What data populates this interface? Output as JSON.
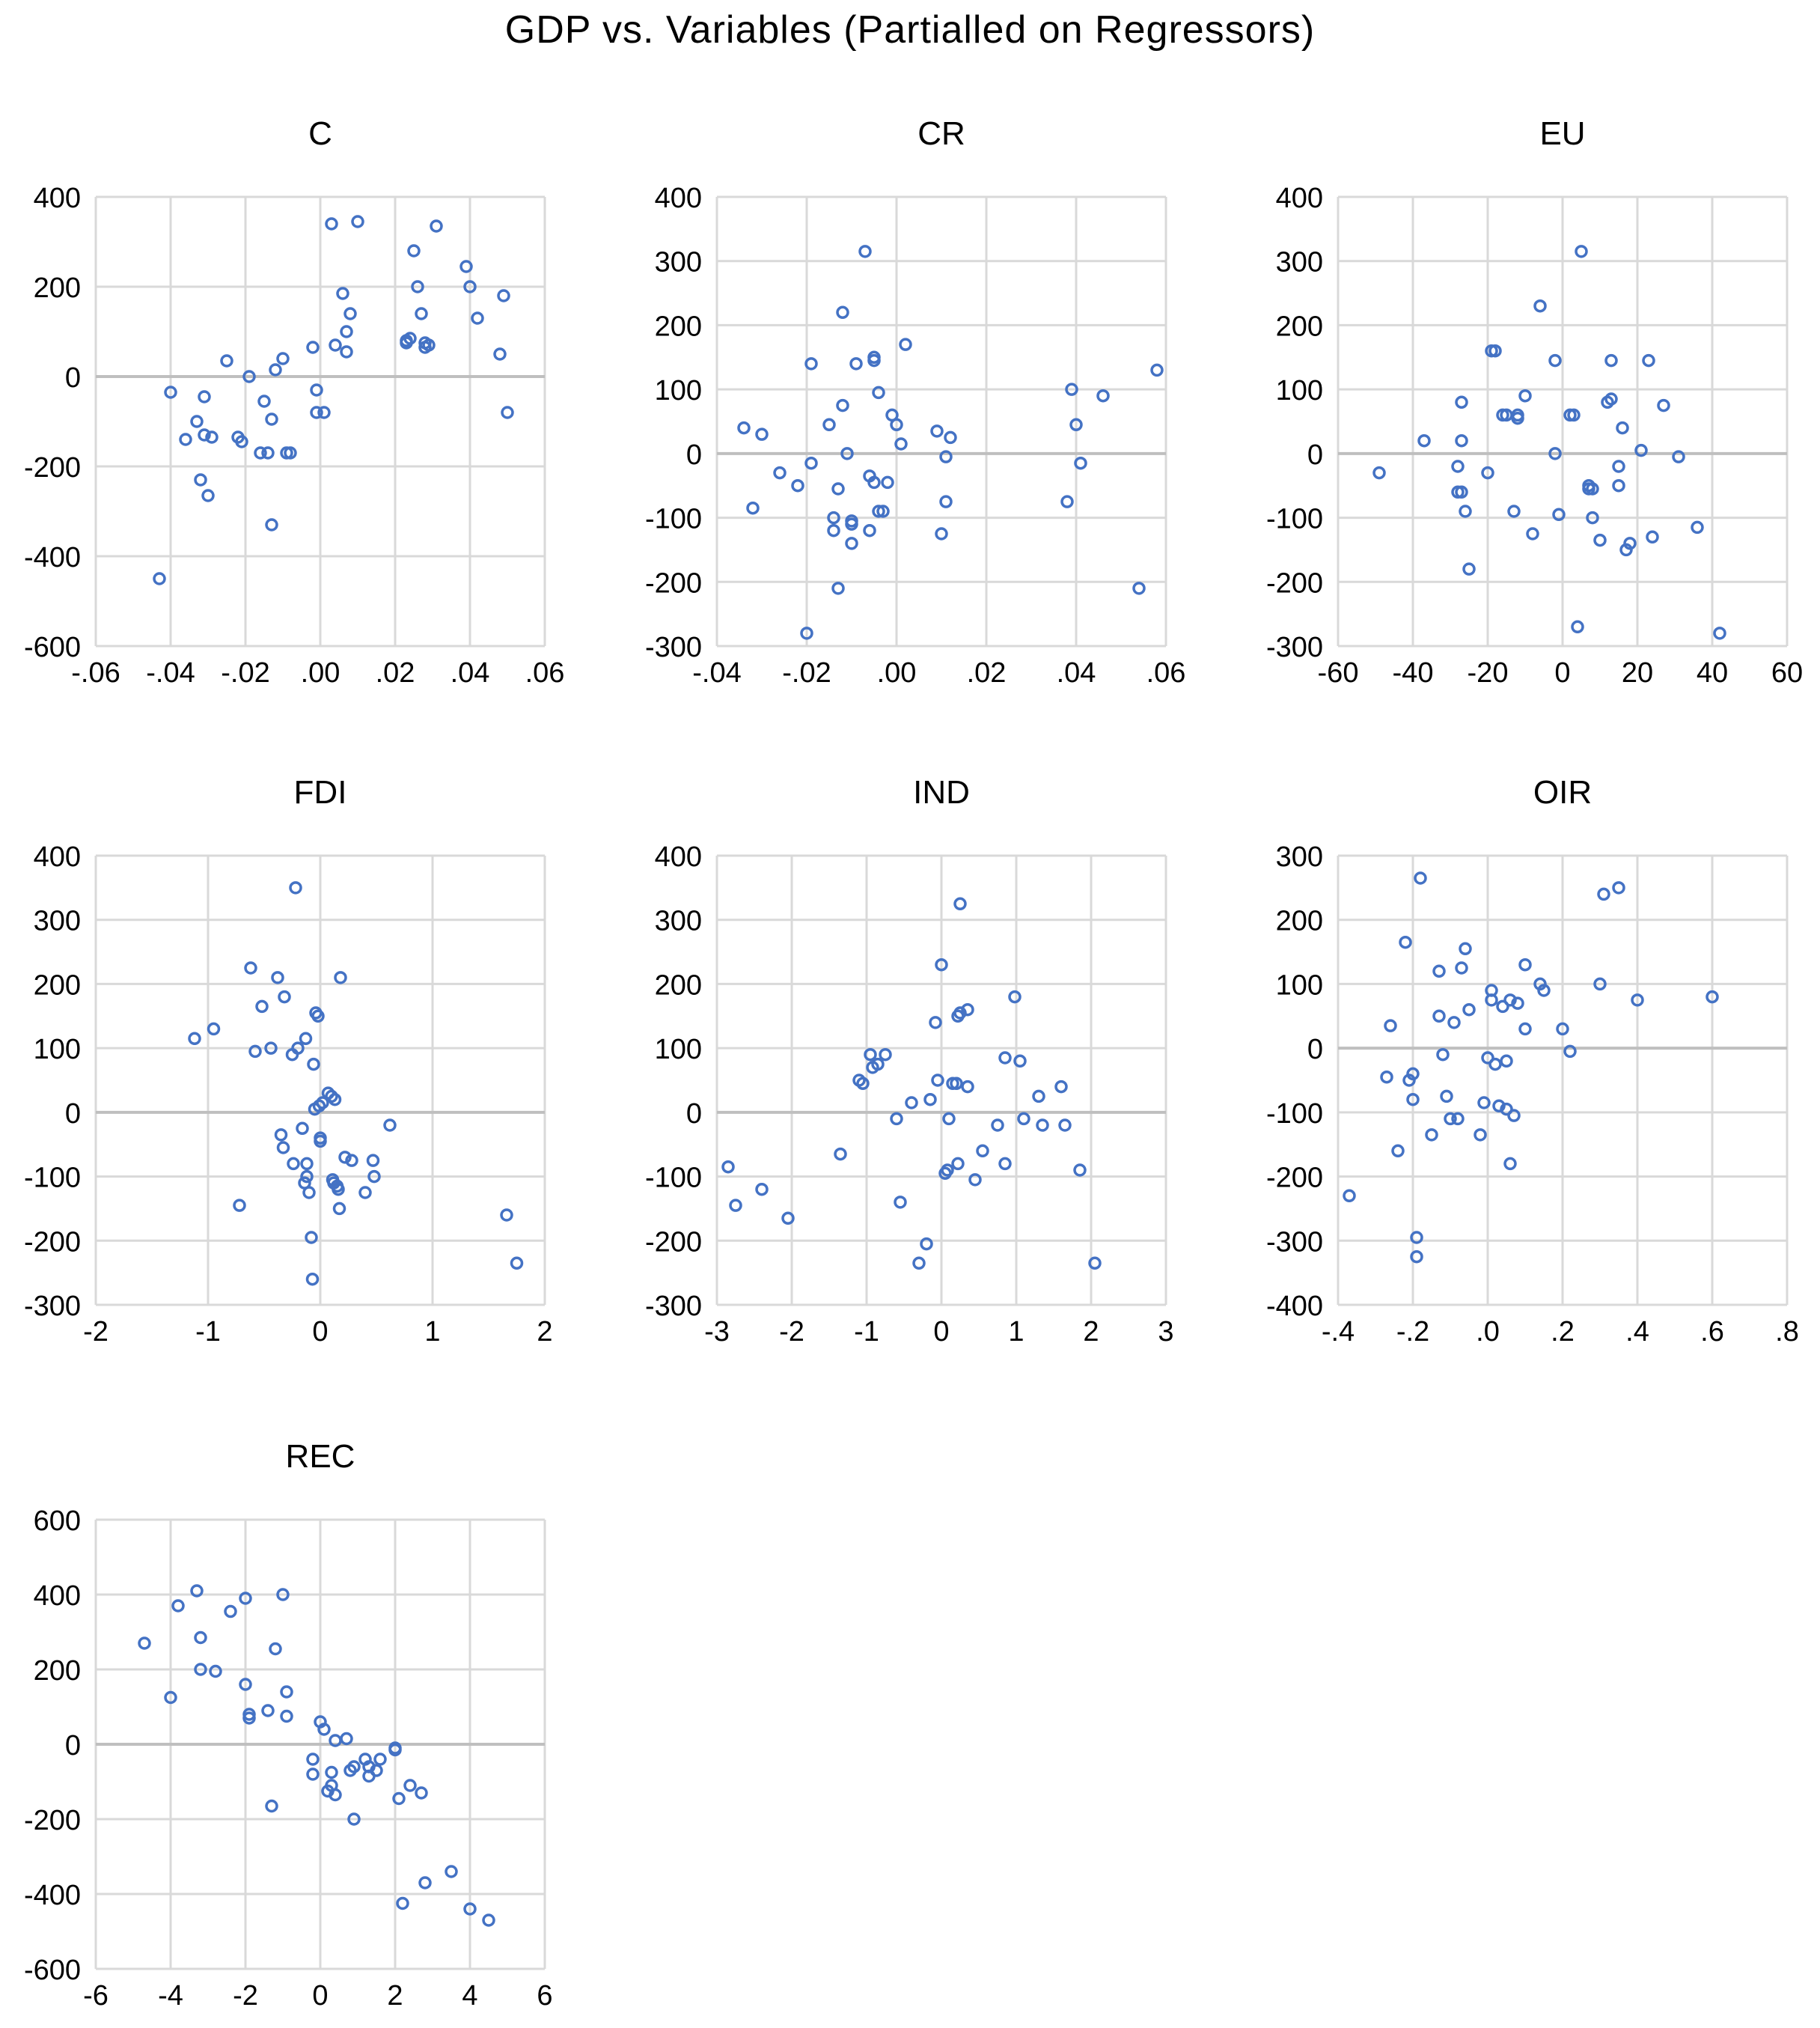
{
  "figure_title": "GDP vs. Variables (Partialled on Regressors)",
  "colors": {
    "marker": "#4472C4",
    "grid": "#D9D9D9",
    "zero_line": "#BFBFBF",
    "text": "#000000"
  },
  "chart_data": [
    {
      "type": "scatter",
      "title": "C",
      "xlim": [
        -0.06,
        0.06
      ],
      "xticks": [
        -0.06,
        -0.04,
        -0.02,
        0,
        0.02,
        0.04,
        0.06
      ],
      "xtick_labels": [
        "-.06",
        "-.04",
        "-.02",
        ".00",
        ".02",
        ".04",
        ".06"
      ],
      "ylim": [
        -600,
        400
      ],
      "yticks": [
        -600,
        -400,
        -200,
        0,
        200,
        400
      ],
      "ytick_labels": [
        "-600",
        "-400",
        "-200",
        "0",
        "200",
        "400"
      ],
      "x": [
        -0.043,
        -0.04,
        -0.036,
        -0.033,
        -0.032,
        -0.031,
        -0.031,
        -0.03,
        -0.029,
        -0.025,
        -0.022,
        -0.021,
        -0.019,
        -0.016,
        -0.015,
        -0.014,
        -0.013,
        -0.013,
        -0.012,
        -0.01,
        -0.009,
        -0.008,
        -0.002,
        -0.001,
        -0.001,
        0.001,
        0.003,
        0.004,
        0.006,
        0.007,
        0.007,
        0.008,
        0.01,
        0.023,
        0.023,
        0.024,
        0.025,
        0.026,
        0.027,
        0.028,
        0.028,
        0.029,
        0.031,
        0.039,
        0.04,
        0.042,
        0.048,
        0.049,
        0.05
      ],
      "y": [
        -450,
        -35,
        -140,
        -100,
        -230,
        -130,
        -45,
        -265,
        -135,
        35,
        -135,
        -145,
        0,
        -170,
        -55,
        -170,
        -330,
        -95,
        15,
        40,
        -170,
        -170,
        65,
        -30,
        -80,
        -80,
        340,
        70,
        185,
        55,
        100,
        140,
        345,
        75,
        80,
        85,
        280,
        200,
        140,
        65,
        75,
        70,
        335,
        245,
        200,
        130,
        50,
        180,
        -80
      ]
    },
    {
      "type": "scatter",
      "title": "CR",
      "xlim": [
        -0.04,
        0.06
      ],
      "xticks": [
        -0.04,
        -0.02,
        0,
        0.02,
        0.04,
        0.06
      ],
      "xtick_labels": [
        "-.04",
        "-.02",
        ".00",
        ".02",
        ".04",
        ".06"
      ],
      "ylim": [
        -300,
        400
      ],
      "yticks": [
        -300,
        -200,
        -100,
        0,
        100,
        200,
        300,
        400
      ],
      "ytick_labels": [
        "-300",
        "-200",
        "-100",
        "0",
        "100",
        "200",
        "300",
        "400"
      ],
      "x": [
        -0.034,
        -0.032,
        -0.03,
        -0.026,
        -0.022,
        -0.02,
        -0.019,
        -0.019,
        -0.015,
        -0.014,
        -0.014,
        -0.013,
        -0.013,
        -0.012,
        -0.012,
        -0.011,
        -0.01,
        -0.01,
        -0.01,
        -0.009,
        -0.007,
        -0.006,
        -0.006,
        -0.005,
        -0.005,
        -0.005,
        -0.004,
        -0.004,
        -0.003,
        -0.002,
        -0.001,
        0.0,
        0.001,
        0.002,
        0.009,
        0.01,
        0.011,
        0.011,
        0.012,
        0.038,
        0.039,
        0.04,
        0.041,
        0.046,
        0.054,
        0.058
      ],
      "y": [
        40,
        -85,
        30,
        -30,
        -50,
        -280,
        140,
        -15,
        45,
        -100,
        -120,
        -210,
        -55,
        220,
        75,
        0,
        -110,
        -140,
        -105,
        140,
        315,
        -35,
        -120,
        -45,
        145,
        150,
        95,
        -90,
        -90,
        -45,
        60,
        45,
        15,
        170,
        35,
        -125,
        -75,
        -5,
        25,
        -75,
        100,
        45,
        -15,
        90,
        -210,
        130
      ]
    },
    {
      "type": "scatter",
      "title": "EU",
      "xlim": [
        -60,
        60
      ],
      "xticks": [
        -60,
        -40,
        -20,
        0,
        20,
        40,
        60
      ],
      "xtick_labels": [
        "-60",
        "-40",
        "-20",
        "0",
        "20",
        "40",
        "60"
      ],
      "ylim": [
        -300,
        400
      ],
      "yticks": [
        -300,
        -200,
        -100,
        0,
        100,
        200,
        300,
        400
      ],
      "ytick_labels": [
        "-300",
        "-200",
        "-100",
        "0",
        "100",
        "200",
        "300",
        "400"
      ],
      "x": [
        -49,
        -37,
        -28,
        -28,
        -27,
        -27,
        -27,
        -26,
        -25,
        -20,
        -19,
        -18,
        -16,
        -15,
        -13,
        -12,
        -12,
        -10,
        -8,
        -6,
        -2,
        -2,
        -1,
        2,
        3,
        4,
        5,
        7,
        7,
        8,
        8,
        10,
        12,
        13,
        13,
        15,
        15,
        16,
        17,
        18,
        21,
        23,
        24,
        27,
        31,
        36,
        42
      ],
      "y": [
        -30,
        20,
        -20,
        -60,
        20,
        -60,
        80,
        -90,
        -180,
        -30,
        160,
        160,
        60,
        60,
        -90,
        60,
        55,
        90,
        -125,
        230,
        145,
        0,
        -95,
        60,
        60,
        -270,
        315,
        -55,
        -50,
        -55,
        -100,
        -135,
        80,
        145,
        85,
        -20,
        -50,
        40,
        -150,
        -140,
        5,
        145,
        -130,
        75,
        -5,
        -115,
        -280
      ]
    },
    {
      "type": "scatter",
      "title": "FDI",
      "xlim": [
        -2,
        2
      ],
      "xticks": [
        -2,
        -1,
        0,
        1,
        2
      ],
      "xtick_labels": [
        "-2",
        "-1",
        "0",
        "1",
        "2"
      ],
      "ylim": [
        -300,
        400
      ],
      "yticks": [
        -300,
        -200,
        -100,
        0,
        100,
        200,
        300,
        400
      ],
      "ytick_labels": [
        "-300",
        "-200",
        "-100",
        "0",
        "100",
        "200",
        "300",
        "400"
      ],
      "x": [
        -1.12,
        -0.95,
        -0.72,
        -0.62,
        -0.58,
        -0.52,
        -0.44,
        -0.38,
        -0.35,
        -0.33,
        -0.32,
        -0.25,
        -0.24,
        -0.22,
        -0.2,
        -0.16,
        -0.14,
        -0.13,
        -0.12,
        -0.12,
        -0.1,
        -0.08,
        -0.07,
        -0.06,
        -0.05,
        -0.04,
        -0.02,
        -0.01,
        0.0,
        0.0,
        0.02,
        0.07,
        0.1,
        0.11,
        0.12,
        0.13,
        0.15,
        0.16,
        0.17,
        0.18,
        0.22,
        0.28,
        0.4,
        0.47,
        0.48,
        0.62,
        1.66,
        1.75
      ],
      "y": [
        115,
        130,
        -145,
        225,
        95,
        165,
        100,
        210,
        -35,
        -55,
        180,
        90,
        -80,
        350,
        100,
        -25,
        -110,
        115,
        -100,
        -80,
        -125,
        -195,
        -260,
        75,
        5,
        155,
        150,
        10,
        -40,
        -45,
        15,
        30,
        25,
        -105,
        -110,
        20,
        -115,
        -120,
        -150,
        210,
        -70,
        -75,
        -125,
        -75,
        -100,
        -20,
        -160,
        -235
      ]
    },
    {
      "type": "scatter",
      "title": "IND",
      "xlim": [
        -3,
        3
      ],
      "xticks": [
        -3,
        -2,
        -1,
        0,
        1,
        2,
        3
      ],
      "xtick_labels": [
        "-3",
        "-2",
        "-1",
        "0",
        "1",
        "2",
        "3"
      ],
      "ylim": [
        -300,
        400
      ],
      "yticks": [
        -300,
        -200,
        -100,
        0,
        100,
        200,
        300,
        400
      ],
      "ytick_labels": [
        "-300",
        "-200",
        "-100",
        "0",
        "100",
        "200",
        "300",
        "400"
      ],
      "x": [
        -2.85,
        -2.75,
        -2.4,
        -2.05,
        -1.35,
        -1.1,
        -1.05,
        -0.95,
        -0.92,
        -0.85,
        -0.75,
        -0.6,
        -0.55,
        -0.4,
        -0.3,
        -0.2,
        -0.15,
        -0.08,
        -0.05,
        0.0,
        0.05,
        0.08,
        0.1,
        0.15,
        0.2,
        0.22,
        0.22,
        0.25,
        0.25,
        0.35,
        0.35,
        0.45,
        0.55,
        0.75,
        0.85,
        0.85,
        0.98,
        1.05,
        1.1,
        1.3,
        1.35,
        1.6,
        1.65,
        1.85,
        2.05
      ],
      "y": [
        -85,
        -145,
        -120,
        -165,
        -65,
        50,
        45,
        90,
        70,
        75,
        90,
        -10,
        -140,
        15,
        -235,
        -205,
        20,
        140,
        50,
        230,
        -95,
        -90,
        -10,
        45,
        45,
        -80,
        150,
        155,
        325,
        160,
        40,
        -105,
        -60,
        -20,
        85,
        -80,
        180,
        80,
        -10,
        25,
        -20,
        40,
        -20,
        -90,
        -235
      ]
    },
    {
      "type": "scatter",
      "title": "OIR",
      "xlim": [
        -0.4,
        0.8
      ],
      "xticks": [
        -0.4,
        -0.2,
        0,
        0.2,
        0.4,
        0.6,
        0.8
      ],
      "xtick_labels": [
        "-.4",
        "-.2",
        ".0",
        ".2",
        ".4",
        ".6",
        ".8"
      ],
      "ylim": [
        -400,
        300
      ],
      "yticks": [
        -400,
        -300,
        -200,
        -100,
        0,
        100,
        200,
        300
      ],
      "ytick_labels": [
        "-400",
        "-300",
        "-200",
        "-100",
        "0",
        "100",
        "200",
        "300"
      ],
      "x": [
        -0.37,
        -0.27,
        -0.26,
        -0.24,
        -0.22,
        -0.21,
        -0.2,
        -0.2,
        -0.19,
        -0.19,
        -0.18,
        -0.15,
        -0.13,
        -0.13,
        -0.12,
        -0.11,
        -0.1,
        -0.09,
        -0.08,
        -0.07,
        -0.06,
        -0.05,
        -0.02,
        -0.01,
        0.0,
        0.01,
        0.01,
        0.02,
        0.03,
        0.04,
        0.05,
        0.05,
        0.06,
        0.06,
        0.07,
        0.08,
        0.1,
        0.1,
        0.14,
        0.15,
        0.2,
        0.22,
        0.3,
        0.31,
        0.35,
        0.4,
        0.6
      ],
      "y": [
        -230,
        -45,
        35,
        -160,
        165,
        -50,
        -40,
        -80,
        -325,
        -295,
        265,
        -135,
        50,
        120,
        -10,
        -75,
        -110,
        40,
        -110,
        125,
        155,
        60,
        -135,
        -85,
        -15,
        75,
        90,
        -25,
        -90,
        65,
        -95,
        -20,
        75,
        -180,
        -105,
        70,
        30,
        130,
        100,
        90,
        30,
        -5,
        100,
        240,
        250,
        75,
        80
      ]
    },
    {
      "type": "scatter",
      "title": "REC",
      "xlim": [
        -6,
        6
      ],
      "xticks": [
        -6,
        -4,
        -2,
        0,
        2,
        4,
        6
      ],
      "xtick_labels": [
        "-6",
        "-4",
        "-2",
        "0",
        "2",
        "4",
        "6"
      ],
      "ylim": [
        -600,
        600
      ],
      "yticks": [
        -600,
        -400,
        -200,
        0,
        200,
        400,
        600
      ],
      "ytick_labels": [
        "-600",
        "-400",
        "-200",
        "0",
        "200",
        "400",
        "600"
      ],
      "x": [
        -4.7,
        -4.0,
        -3.8,
        -3.3,
        -3.2,
        -3.2,
        -2.8,
        -2.4,
        -2.0,
        -2.0,
        -1.9,
        -1.9,
        -1.4,
        -1.3,
        -1.2,
        -1.0,
        -0.9,
        -0.9,
        -0.2,
        -0.2,
        0.0,
        0.1,
        0.2,
        0.3,
        0.3,
        0.4,
        0.4,
        0.7,
        0.8,
        0.9,
        0.9,
        1.2,
        1.3,
        1.3,
        1.5,
        1.6,
        2.0,
        2.0,
        2.1,
        2.2,
        2.4,
        2.7,
        2.8,
        3.5,
        4.0,
        4.5
      ],
      "y": [
        270,
        125,
        370,
        410,
        285,
        200,
        195,
        355,
        390,
        160,
        80,
        70,
        90,
        -165,
        255,
        400,
        140,
        75,
        -80,
        -40,
        60,
        40,
        -125,
        -110,
        -75,
        10,
        -135,
        15,
        -70,
        -200,
        -60,
        -40,
        -85,
        -60,
        -70,
        -40,
        -10,
        -15,
        -145,
        -425,
        -110,
        -130,
        -370,
        -340,
        -440,
        -470
      ]
    }
  ]
}
